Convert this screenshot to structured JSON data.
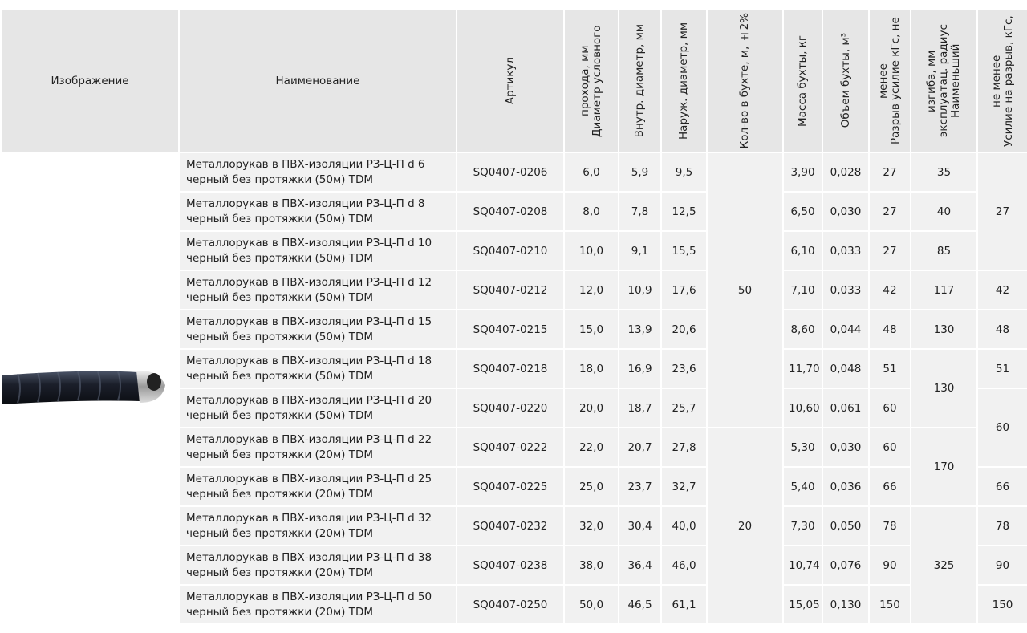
{
  "table": {
    "header": [
      "Изображение",
      "Наименование",
      "Артикул",
      "Диаметр условного прохода, мм",
      "Внутр. диаметр, мм",
      "Наруж. диаметр, мм",
      "Кол-во в бухте, м, ±2%",
      "Масса бухты, кг",
      "Объем бухты, м³",
      "Разрыв усилие кГс, не менее",
      "Наименьший эксплуатац. радиус изгиба, мм",
      "Усилие на разрыв, кГс, не менее"
    ],
    "rows": [
      [
        "Металлорукав в ПВХ-изоляции РЗ-Ц-П d 6 черный без протяжки (50м) TDM",
        "SQ0407-0206",
        "6,0",
        "5,9",
        "9,5",
        "3,90",
        "0,028",
        "27"
      ],
      [
        "Металлорукав в ПВХ-изоляции РЗ-Ц-П d 8 черный без протяжки (50м) TDM",
        "SQ0407-0208",
        "8,0",
        "7,8",
        "12,5",
        "6,50",
        "0,030",
        "27"
      ],
      [
        "Металлорукав в ПВХ-изоляции РЗ-Ц-П d 10 черный без протяжки (50м) TDM",
        "SQ0407-0210",
        "10,0",
        "9,1",
        "15,5",
        "6,10",
        "0,033",
        "27"
      ],
      [
        "Металлорукав в ПВХ-изоляции РЗ-Ц-П d 12 черный без протяжки (50м) TDM",
        "SQ0407-0212",
        "12,0",
        "10,9",
        "17,6",
        "7,10",
        "0,033",
        "42"
      ],
      [
        "Металлорукав в ПВХ-изоляции РЗ-Ц-П d 15 черный без протяжки (50м) TDM",
        "SQ0407-0215",
        "15,0",
        "13,9",
        "20,6",
        "8,60",
        "0,044",
        "48"
      ],
      [
        "Металлорукав в ПВХ-изоляции РЗ-Ц-П d 18 черный без протяжки (50м) TDM",
        "SQ0407-0218",
        "18,0",
        "16,9",
        "23,6",
        "11,70",
        "0,048",
        "51"
      ],
      [
        "Металлорукав в ПВХ-изоляции РЗ-Ц-П d 20 черный без протяжки (50м) TDM",
        "SQ0407-0220",
        "20,0",
        "18,7",
        "25,7",
        "10,60",
        "0,061",
        "60"
      ],
      [
        "Металлорукав в ПВХ-изоляции РЗ-Ц-П d 22 черный без протяжки (20м) TDM",
        "SQ0407-0222",
        "22,0",
        "20,7",
        "27,8",
        "5,30",
        "0,030",
        "60"
      ],
      [
        "Металлорукав в ПВХ-изоляции РЗ-Ц-П d 25 черный без протяжки (20м) TDM",
        "SQ0407-0225",
        "25,0",
        "23,7",
        "32,7",
        "5,40",
        "0,036",
        "66"
      ],
      [
        "Металлорукав в ПВХ-изоляции РЗ-Ц-П d 32 черный без протяжки (20м) TDM",
        "SQ0407-0232",
        "32,0",
        "30,4",
        "40,0",
        "7,30",
        "0,050",
        "78"
      ],
      [
        "Металлорукав в ПВХ-изоляции РЗ-Ц-П d 38 черный без протяжки (20м) TDM",
        "SQ0407-0238",
        "38,0",
        "36,4",
        "46,0",
        "10,74",
        "0,076",
        "90"
      ],
      [
        "Металлорукав в ПВХ-изоляции РЗ-Ц-П d 50 черный без протяжки (20м) TDM",
        "SQ0407-0250",
        "50,0",
        "46,5",
        "61,1",
        "15,05",
        "0,130",
        "150"
      ]
    ],
    "coil_quantity": [
      "50",
      "20"
    ],
    "bend_radius": [
      "35",
      "40",
      "85",
      "117",
      "130",
      "130",
      "170",
      "325"
    ],
    "tensile_force": [
      "27",
      "42",
      "48",
      "51",
      "60",
      "66",
      "78",
      "90",
      "150"
    ]
  }
}
